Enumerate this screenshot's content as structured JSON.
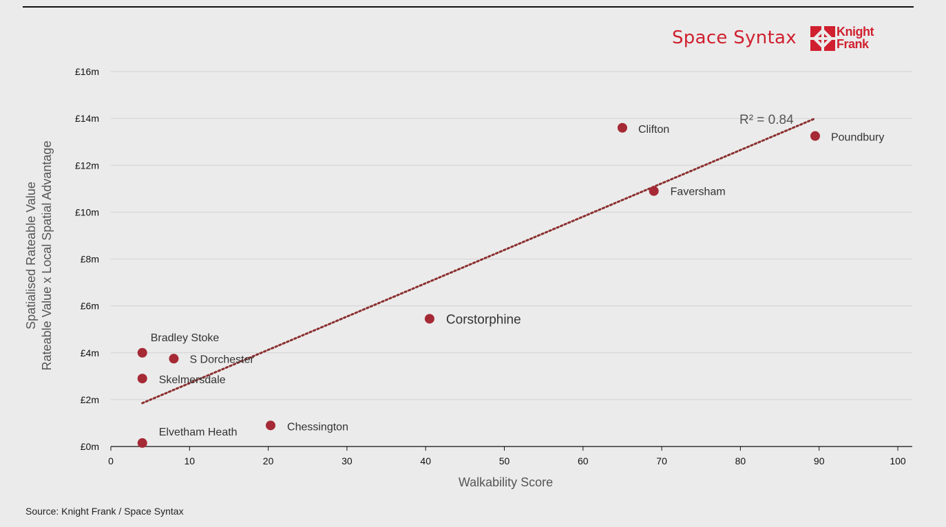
{
  "brand": {
    "space_syntax": "Space Syntax",
    "knight_frank_line1": "Knight",
    "knight_frank_line2": "Frank",
    "logo_icon": "knight-frank-diamond-icon",
    "accent": "#d0202f"
  },
  "source": "Source: Knight Frank / Space Syntax",
  "chart_data": {
    "type": "scatter",
    "title": "",
    "xlabel": "Walkability Score",
    "ylabel_line1": "Spatialised Rateable Value",
    "ylabel_line2": "Rateable Value x Local Spatial Advantage",
    "xlim": [
      0,
      100
    ],
    "ylim": [
      0,
      16
    ],
    "x_ticks": [
      0,
      10,
      20,
      30,
      40,
      50,
      60,
      70,
      80,
      90,
      100
    ],
    "x_tick_labels": [
      "0",
      "10",
      "20",
      "30",
      "40",
      "50",
      "60",
      "70",
      "80",
      "90",
      "100"
    ],
    "y_ticks": [
      0,
      2,
      4,
      6,
      8,
      10,
      12,
      14,
      16
    ],
    "y_tick_labels": [
      "£0m",
      "£2m",
      "£4m",
      "£6m",
      "£8m",
      "£10m",
      "£12m",
      "£14m",
      "£16m"
    ],
    "grid": true,
    "point_color": "#a52a35",
    "trend_color": "#8b2e2e",
    "points": [
      {
        "name": "Elvetham Heath",
        "x": 4,
        "y": 0.15
      },
      {
        "name": "Skelmersdale",
        "x": 4,
        "y": 2.9
      },
      {
        "name": "Bradley Stoke",
        "x": 4,
        "y": 4.0
      },
      {
        "name": "S Dorchester",
        "x": 8,
        "y": 3.75
      },
      {
        "name": "Chessington",
        "x": 20.3,
        "y": 0.9
      },
      {
        "name": "Corstorphine",
        "x": 40.5,
        "y": 5.45
      },
      {
        "name": "Clifton",
        "x": 65,
        "y": 13.6
      },
      {
        "name": "Faversham",
        "x": 69,
        "y": 10.9
      },
      {
        "name": "Poundbury",
        "x": 89.5,
        "y": 13.25
      }
    ],
    "trendline": {
      "x": [
        4,
        89.5
      ],
      "y": [
        1.85,
        14.0
      ],
      "r2_label": "R² = 0.84"
    }
  }
}
